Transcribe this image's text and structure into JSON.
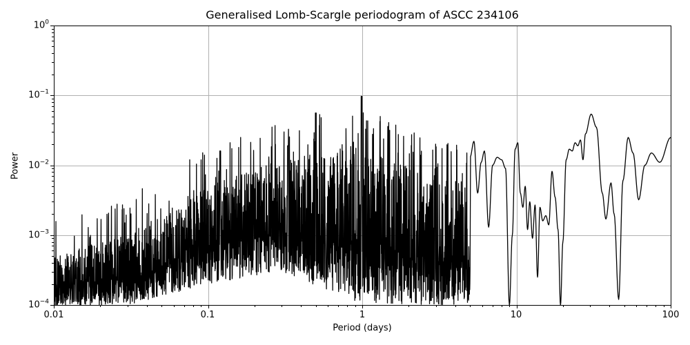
{
  "chart_data": {
    "type": "line",
    "title": "Generalised Lomb-Scargle periodogram of ASCC 234106",
    "xlabel": "Period (days)",
    "ylabel": "Power",
    "xscale": "log",
    "yscale": "log",
    "xlim": [
      0.01,
      100
    ],
    "ylim": [
      0.0001,
      1
    ],
    "grid": true,
    "x_ticks": [
      "0.01",
      "0.1",
      "1",
      "10",
      "100"
    ],
    "y_ticks": [
      {
        "base": "10",
        "exp": "0"
      },
      {
        "base": "10",
        "exp": "−1"
      },
      {
        "base": "10",
        "exp": "−2"
      },
      {
        "base": "10",
        "exp": "−3"
      },
      {
        "base": "10",
        "exp": "−4"
      }
    ],
    "line_color": "#000000",
    "grid_color": "#b0b0b0",
    "notable_peaks": [
      {
        "period": 0.5,
        "power": 0.056
      },
      {
        "period": 0.99,
        "power": 0.097
      },
      {
        "period": 0.12,
        "power": 0.016
      },
      {
        "period": 0.33,
        "power": 0.019
      },
      {
        "period": 31,
        "power": 0.055
      },
      {
        "period": 52,
        "power": 0.025
      }
    ],
    "envelope": {
      "description": "Noisy forest rising from ~3e-4 at 0.01 d to ~1e-2 near 1 d; smoother oscillating curve beyond ~5 d",
      "points": [
        {
          "period": 0.01,
          "upper": 0.0005,
          "lower": 0.0001
        },
        {
          "period": 0.03,
          "upper": 0.001,
          "lower": 0.0001
        },
        {
          "period": 0.1,
          "upper": 0.005,
          "lower": 0.0002
        },
        {
          "period": 0.3,
          "upper": 0.012,
          "lower": 0.0003
        },
        {
          "period": 1.0,
          "upper": 0.02,
          "lower": 0.0001
        },
        {
          "period": 3.0,
          "upper": 0.006,
          "lower": 0.0001
        }
      ]
    },
    "smooth_tail": [
      [
        5.0,
        0.013
      ],
      [
        5.3,
        0.022
      ],
      [
        5.6,
        0.004
      ],
      [
        5.9,
        0.011
      ],
      [
        6.2,
        0.016
      ],
      [
        6.6,
        0.0013
      ],
      [
        7.0,
        0.01
      ],
      [
        7.5,
        0.013
      ],
      [
        8.0,
        0.012
      ],
      [
        8.5,
        0.009
      ],
      [
        9.0,
        0.0001
      ],
      [
        9.4,
        0.001
      ],
      [
        9.8,
        0.017
      ],
      [
        10.2,
        0.021
      ],
      [
        10.6,
        0.004
      ],
      [
        11.0,
        0.0025
      ],
      [
        11.4,
        0.005
      ],
      [
        11.8,
        0.0012
      ],
      [
        12.2,
        0.003
      ],
      [
        12.7,
        0.0009
      ],
      [
        13.2,
        0.0027
      ],
      [
        13.7,
        0.00025
      ],
      [
        14.2,
        0.0025
      ],
      [
        14.8,
        0.0016
      ],
      [
        15.5,
        0.0019
      ],
      [
        16.2,
        0.0014
      ],
      [
        17.0,
        0.0082
      ],
      [
        17.8,
        0.0035
      ],
      [
        18.6,
        0.0012
      ],
      [
        19.3,
        0.0001
      ],
      [
        20.0,
        0.0008
      ],
      [
        21.0,
        0.012
      ],
      [
        22.0,
        0.017
      ],
      [
        23.0,
        0.016
      ],
      [
        24.0,
        0.021
      ],
      [
        25.0,
        0.019
      ],
      [
        26.0,
        0.023
      ],
      [
        27.0,
        0.012
      ],
      [
        28.0,
        0.028
      ],
      [
        30.5,
        0.054
      ],
      [
        33.0,
        0.035
      ],
      [
        36.0,
        0.004
      ],
      [
        38.0,
        0.0017
      ],
      [
        41.0,
        0.0056
      ],
      [
        43.0,
        0.002
      ],
      [
        46.0,
        0.00012
      ],
      [
        49.0,
        0.006
      ],
      [
        53.0,
        0.025
      ],
      [
        57.0,
        0.015
      ],
      [
        62.0,
        0.0032
      ],
      [
        68.0,
        0.01
      ],
      [
        75.0,
        0.015
      ],
      [
        85.0,
        0.011
      ],
      [
        100.0,
        0.025
      ]
    ]
  }
}
